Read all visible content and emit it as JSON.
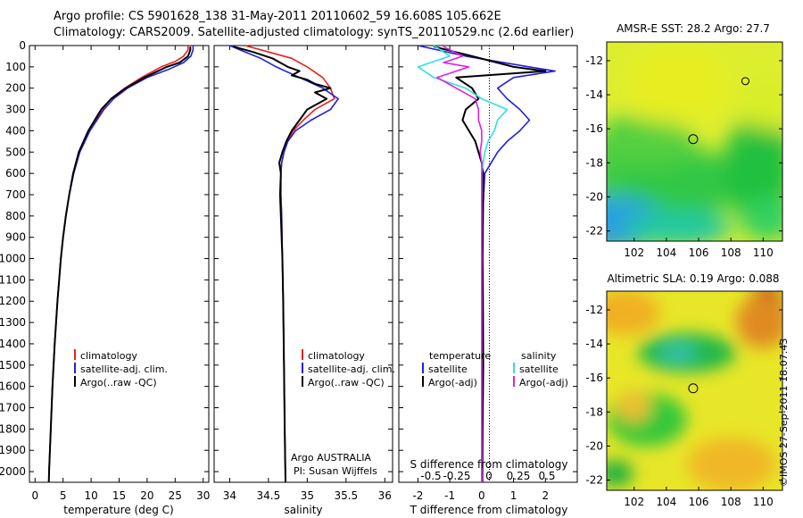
{
  "header": {
    "line1": "Argo profile: CS 5901628_138 31-May-2011 20110602_59 16.608S 105.662E",
    "line2": "Climatology: CARS2009. Satellite-adjusted climatology: synTS_20110529.nc (2.6d earlier)"
  },
  "watermark": "©IMOS 27-Sep-2011 18:07:43",
  "colors": {
    "climatology": "#e8201c",
    "satellite": "#2020e0",
    "argo": "#000000",
    "sal_sat": "#30e0e0",
    "sal_argo": "#e020e0"
  },
  "chart_data": [
    {
      "type": "line",
      "panel": "temperature",
      "xlabel": "temperature (deg C)",
      "ylabel": "",
      "xlim": [
        -1,
        31
      ],
      "ylim": [
        2050,
        0
      ],
      "xticks": [
        0,
        5,
        10,
        15,
        20,
        25,
        30
      ],
      "yticks": [
        0,
        100,
        200,
        300,
        400,
        500,
        600,
        700,
        800,
        900,
        1000,
        1100,
        1200,
        1300,
        1400,
        1500,
        1600,
        1700,
        1800,
        1900,
        2000
      ],
      "legend": [
        "climatology",
        "satellite-adj. clim.",
        "Argo(..raw -QC)"
      ],
      "series": [
        {
          "name": "climatology",
          "color": "#e8201c",
          "depth": [
            0,
            20,
            50,
            75,
            100,
            150,
            200,
            250,
            300,
            400,
            500,
            600,
            700,
            800,
            900,
            1000,
            1200,
            1400,
            1600,
            1800,
            2000,
            2050
          ],
          "values": [
            27.3,
            27.3,
            26.5,
            25.0,
            22.5,
            19.0,
            16.0,
            13.5,
            12.0,
            9.6,
            7.9,
            6.9,
            6.1,
            5.5,
            5.0,
            4.6,
            4.0,
            3.5,
            3.1,
            2.8,
            2.5,
            2.45
          ]
        },
        {
          "name": "satellite-adj. clim.",
          "color": "#2020e0",
          "depth": [
            0,
            20,
            50,
            80,
            110,
            150,
            200,
            250,
            300,
            400,
            500,
            600,
            700,
            800,
            900,
            1000,
            1200,
            1400,
            1600,
            1800,
            2000,
            2050
          ],
          "values": [
            28.2,
            28.2,
            27.8,
            26.5,
            24.0,
            20.0,
            16.5,
            14.0,
            12.3,
            9.8,
            8.0,
            6.9,
            6.1,
            5.5,
            5.0,
            4.6,
            4.0,
            3.5,
            3.1,
            2.8,
            2.5,
            2.45
          ]
        },
        {
          "name": "Argo(..raw -QC)",
          "color": "#000000",
          "depth": [
            5,
            20,
            50,
            80,
            100,
            150,
            200,
            250,
            300,
            400,
            500,
            600,
            700,
            800,
            900,
            1000,
            1200,
            1400,
            1600,
            1800,
            2000,
            2050
          ],
          "values": [
            27.7,
            27.7,
            27.3,
            25.8,
            23.5,
            19.5,
            16.2,
            13.6,
            11.8,
            9.5,
            7.8,
            6.8,
            6.1,
            5.5,
            5.0,
            4.6,
            4.0,
            3.5,
            3.1,
            2.8,
            2.5,
            2.45
          ]
        }
      ]
    },
    {
      "type": "line",
      "panel": "salinity",
      "xlabel": "salinity",
      "ylabel": "",
      "xlim": [
        33.8,
        36.1
      ],
      "ylim": [
        2050,
        0
      ],
      "xticks": [
        34,
        34.5,
        35,
        35.5,
        36
      ],
      "legend": [
        "climatology",
        "satellite-adj. clim.",
        "Argo(..raw -QC)"
      ],
      "annotation": [
        "Argo AUSTRALIA",
        "PI: Susan Wijffels"
      ],
      "series": [
        {
          "name": "climatology",
          "color": "#e8201c",
          "depth": [
            0,
            30,
            60,
            100,
            150,
            200,
            250,
            300,
            350,
            400,
            450,
            500,
            550,
            600,
            700,
            800,
            1000,
            1200,
            1500,
            1800,
            2050
          ],
          "values": [
            34.2,
            34.5,
            34.8,
            35.0,
            35.2,
            35.3,
            35.35,
            35.1,
            34.95,
            34.82,
            34.74,
            34.7,
            34.67,
            34.66,
            34.66,
            34.67,
            34.68,
            34.69,
            34.7,
            34.71,
            34.72
          ]
        },
        {
          "name": "satellite-adj. clim.",
          "color": "#2020e0",
          "depth": [
            0,
            30,
            60,
            100,
            150,
            200,
            250,
            300,
            350,
            400,
            450,
            500,
            550,
            600,
            700,
            800,
            1000,
            1200,
            1500,
            1800,
            2050
          ],
          "values": [
            34.0,
            34.2,
            34.4,
            34.6,
            34.9,
            35.2,
            35.4,
            35.3,
            35.05,
            34.85,
            34.75,
            34.7,
            34.67,
            34.66,
            34.66,
            34.67,
            34.68,
            34.69,
            34.7,
            34.71,
            34.72
          ]
        },
        {
          "name": "Argo(..raw -QC)",
          "color": "#000000",
          "depth": [
            5,
            30,
            60,
            100,
            120,
            140,
            160,
            180,
            200,
            220,
            250,
            300,
            350,
            400,
            450,
            500,
            550,
            600,
            700,
            800,
            1000,
            1200,
            1500,
            1800,
            2050
          ],
          "values": [
            34.05,
            34.3,
            34.55,
            34.75,
            34.9,
            34.8,
            35.0,
            35.1,
            35.3,
            35.1,
            35.25,
            35.0,
            34.9,
            34.8,
            34.73,
            34.68,
            34.64,
            34.66,
            34.65,
            34.66,
            34.68,
            34.69,
            34.7,
            34.71,
            34.72
          ]
        }
      ]
    },
    {
      "type": "line",
      "panel": "differences",
      "xlabel": "T difference from climatology",
      "x2label": "S difference from climatology",
      "xlim": [
        -2.6,
        3.0
      ],
      "ylim": [
        2050,
        0
      ],
      "xticks": [
        -2,
        -1,
        0,
        1,
        2
      ],
      "x2ticks": [
        "-0.5",
        "-0.25",
        "0",
        "0.25",
        "0.5"
      ],
      "legend_left_title": "temperature",
      "legend_right_title": "salinity",
      "legend": [
        "satellite",
        "Argo(-adj)",
        "satellite",
        "Argo(-adj)"
      ],
      "series": [
        {
          "name": "T satellite",
          "color": "#2020e0",
          "depth": [
            0,
            50,
            100,
            120,
            150,
            200,
            250,
            300,
            350,
            400,
            450,
            500,
            550,
            600,
            800,
            1000,
            1500,
            2050
          ],
          "values": [
            -2.0,
            -0.5,
            1.5,
            2.3,
            1.0,
            0.5,
            0.8,
            1.2,
            1.5,
            1.2,
            0.8,
            0.5,
            0.3,
            0.1,
            0.03,
            0.02,
            0.02,
            0.02
          ]
        },
        {
          "name": "T Argo(-adj)",
          "color": "#000000",
          "depth": [
            5,
            50,
            100,
            120,
            150,
            200,
            250,
            300,
            350,
            400,
            450,
            500,
            550,
            600,
            700,
            800,
            1000,
            1200,
            1500,
            1800,
            2050
          ],
          "values": [
            -1.5,
            -0.3,
            1.0,
            2.0,
            -0.8,
            -0.3,
            -0.1,
            -0.5,
            -0.6,
            -0.4,
            -0.2,
            -0.1,
            0.0,
            0.05,
            0.05,
            0.04,
            0.03,
            0.04,
            0.05,
            0.03,
            0.02
          ]
        },
        {
          "name": "S satellite",
          "color": "#30e0e0",
          "depth": [
            0,
            50,
            100,
            150,
            200,
            250,
            300,
            350,
            400,
            450,
            500,
            550,
            600,
            800,
            1000,
            1500,
            2050
          ],
          "values": [
            -1.5,
            -1.0,
            -2.0,
            -1.5,
            -0.5,
            0.0,
            0.8,
            0.5,
            0.4,
            0.2,
            0.1,
            0.05,
            0.0,
            0.0,
            0.0,
            0.0,
            0.0
          ]
        },
        {
          "name": "S Argo(-adj)",
          "color": "#e020e0",
          "depth": [
            5,
            50,
            80,
            100,
            150,
            200,
            250,
            300,
            350,
            400,
            450,
            500,
            550,
            600,
            800,
            1000,
            1500,
            2050
          ],
          "values": [
            -1.2,
            -0.6,
            -1.2,
            -0.4,
            -1.4,
            -0.8,
            -0.2,
            -0.1,
            -0.1,
            0.0,
            0.0,
            -0.05,
            0.0,
            0.0,
            0.0,
            0.0,
            0.0,
            0.0
          ]
        }
      ]
    },
    {
      "type": "heatmap",
      "panel": "sst-map",
      "title": "AMSR-E SST: 28.2 Argo: 27.7",
      "xlim": [
        100.3,
        111.2
      ],
      "ylim": [
        -22.6,
        -10.9
      ],
      "xticks": [
        102,
        104,
        106,
        108,
        110
      ],
      "yticks": [
        -12,
        -14,
        -16,
        -18,
        -20,
        -22
      ],
      "markers": [
        {
          "lon": 105.662,
          "lat": -16.608
        },
        {
          "lon": 108.9,
          "lat": -13.2
        }
      ]
    },
    {
      "type": "heatmap",
      "panel": "sla-map",
      "title": "Altimetric SLA: 0.19 Argo: 0.088",
      "xlim": [
        100.3,
        111.2
      ],
      "ylim": [
        -22.6,
        -10.9
      ],
      "xticks": [
        102,
        104,
        106,
        108,
        110
      ],
      "yticks": [
        -12,
        -14,
        -16,
        -18,
        -20,
        -22
      ],
      "markers": [
        {
          "lon": 105.662,
          "lat": -16.608
        }
      ]
    }
  ]
}
